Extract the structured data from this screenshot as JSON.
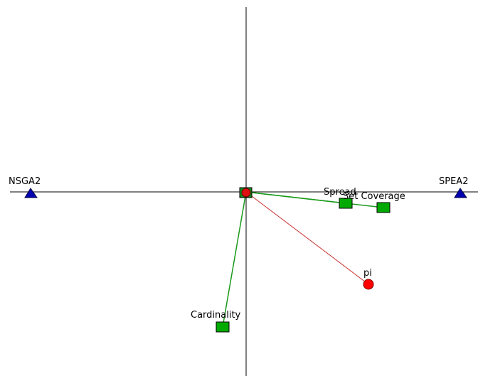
{
  "colors": {
    "background": "#ffffff",
    "axis": "#000000",
    "criteria_line": "#1a9a1a",
    "criteria_fill": "#00aa00",
    "alternative_fill": "#0000b0",
    "pi_line": "#c83232",
    "pi_fill": "#ff0000"
  },
  "alternatives": [
    {
      "label": "NSGA2",
      "icon": "triangle-icon"
    },
    {
      "label": "SPEA2",
      "icon": "triangle-icon"
    }
  ],
  "criteria": [
    {
      "label": "Spread",
      "icon": "square-icon"
    },
    {
      "label": "Set Coverage",
      "icon": "square-icon"
    },
    {
      "label": "Cardinality",
      "icon": "square-icon"
    }
  ],
  "decision_axis": {
    "label": "pi",
    "icon": "circle-icon"
  },
  "origin": {
    "icon": "square-circle-icon"
  }
}
